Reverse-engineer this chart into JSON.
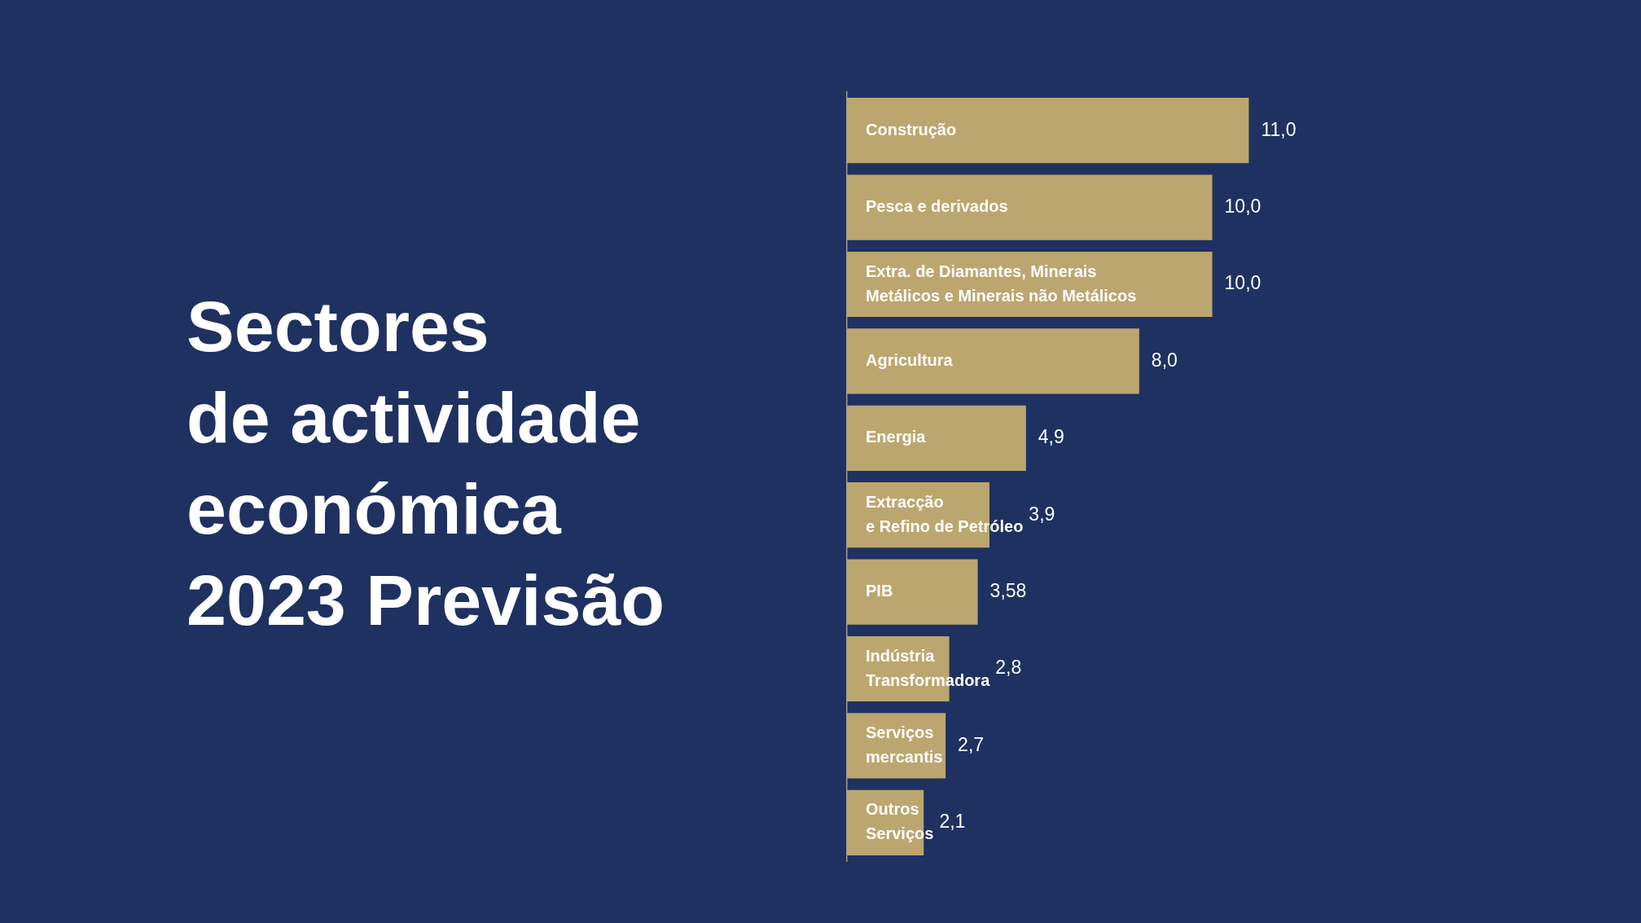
{
  "chart_data": {
    "type": "bar",
    "orientation": "horizontal",
    "title": "Sectores\nde actividade\neconómica\n2023 Previsão",
    "categories": [
      "Construção",
      "Pesca e derivados",
      "Extra. de Diamantes, Minerais\nMetálicos e Minerais não Metálicos",
      "Agricultura",
      "Energia",
      "Extracção\ne Refino de Petróleo",
      "PIB",
      "Indústria\nTransformadora",
      "Serviços\nmercantis",
      "Outros\nServiços"
    ],
    "values": [
      11.0,
      10.0,
      10.0,
      8.0,
      4.9,
      3.9,
      3.58,
      2.8,
      2.7,
      2.1
    ],
    "value_labels": [
      "11,0",
      "10,0",
      "10,0",
      "8,0",
      "4,9",
      "3,9",
      "3,58",
      "2,8",
      "2,7",
      "2,1"
    ],
    "color": "#bca66f"
  }
}
